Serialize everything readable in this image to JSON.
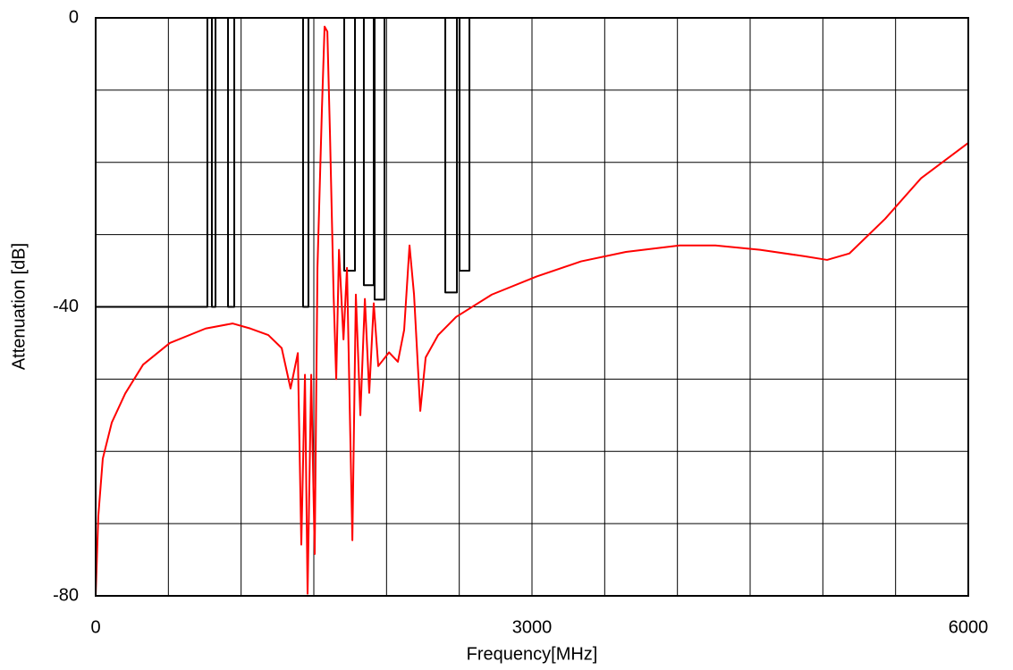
{
  "chart_data": {
    "type": "line",
    "x_label": "Frequency[MHz]",
    "y_label": "Attenuation [dB]",
    "xlim": [
      0,
      6000
    ],
    "ylim": [
      -80,
      0
    ],
    "xticks": [
      0,
      3000,
      6000
    ],
    "yticks": [
      -80,
      -40,
      0
    ],
    "minor_xticks": [
      500,
      1000,
      1500,
      2000,
      2500,
      3500,
      4000,
      4500,
      5000,
      5500
    ],
    "minor_yticks": [
      -70,
      -60,
      -50,
      -30,
      -20,
      -10
    ],
    "grid": true,
    "series": [
      {
        "color": "#000000",
        "x": [
          0,
          768,
          768,
          799,
          799,
          824,
          824,
          910,
          910,
          953,
          953,
          1426,
          1426,
          1463,
          1463,
          1709,
          1709,
          1783,
          1783,
          1844,
          1844,
          1912,
          1912,
          1918,
          1918,
          1986,
          1986,
          2404,
          2404,
          2484,
          2484,
          2502,
          2502,
          2570,
          2570
        ],
        "values": [
          -40,
          -40,
          0,
          0,
          -40,
          -40,
          0,
          0,
          -40,
          -40,
          0,
          0,
          -40,
          -40,
          0,
          0,
          -35,
          -35,
          0,
          0,
          -37,
          -37,
          0,
          0,
          -39,
          -39,
          0,
          0,
          -38,
          -38,
          0,
          0,
          -35,
          -35,
          0
        ]
      },
      {
        "color": "#ff0000",
        "x": [
          0,
          18,
          49,
          111,
          203,
          326,
          510,
          756,
          941,
          1064,
          1187,
          1279,
          1340,
          1390,
          1414,
          1439,
          1457,
          1482,
          1506,
          1525,
          1556,
          1574,
          1593,
          1611,
          1636,
          1654,
          1673,
          1704,
          1728,
          1765,
          1789,
          1820,
          1851,
          1881,
          1912,
          1943,
          2017,
          2078,
          2121,
          2158,
          2189,
          2232,
          2269,
          2355,
          2478,
          2724,
          3031,
          3338,
          3646,
          4015,
          4261,
          4568,
          4875,
          5029,
          5183,
          5429,
          5675,
          6000
        ],
        "values": [
          -80,
          -69,
          -61,
          -56,
          -52,
          -48,
          -45,
          -43,
          -42.3,
          -43,
          -43.9,
          -45.7,
          -51.3,
          -46.4,
          -72.9,
          -49.4,
          -79.7,
          -49.4,
          -74.2,
          -34.6,
          -12.4,
          -1.2,
          -1.9,
          -16,
          -38.3,
          -50,
          -32.1,
          -44.5,
          -34.6,
          -72.3,
          -38.3,
          -55,
          -38.9,
          -51.9,
          -39.5,
          -48.2,
          -46.3,
          -47.6,
          -43.2,
          -31.5,
          -38.3,
          -54.4,
          -47,
          -43.9,
          -41.4,
          -38.3,
          -35.8,
          -33.7,
          -32.4,
          -31.5,
          -31.5,
          -32.1,
          -33,
          -33.5,
          -32.6,
          -27.8,
          -22.2,
          -17.3
        ]
      }
    ]
  }
}
